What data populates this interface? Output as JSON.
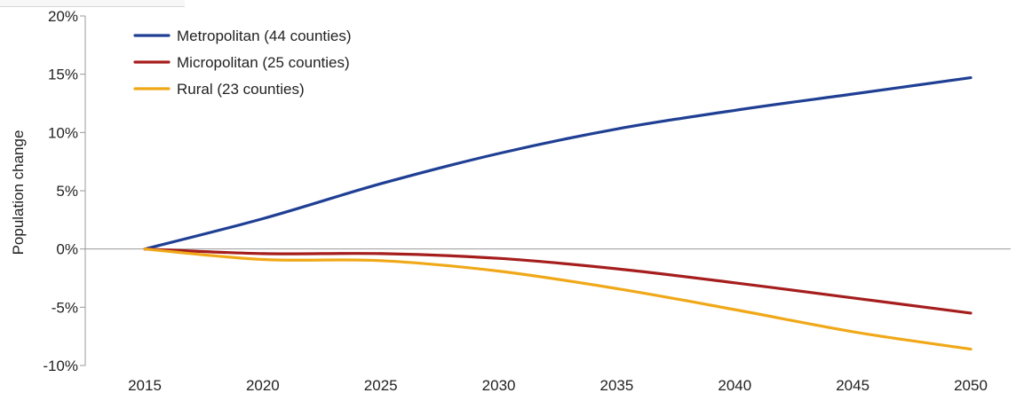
{
  "chart_data": {
    "type": "line",
    "title": "",
    "xlabel": "",
    "ylabel": "Population change",
    "x": [
      2015,
      2020,
      2025,
      2030,
      2035,
      2040,
      2045,
      2050
    ],
    "xticks": [
      "2015",
      "2020",
      "2025",
      "2030",
      "2035",
      "2040",
      "2045",
      "2050"
    ],
    "ylim": [
      -10,
      20
    ],
    "yticks": [
      -10,
      -5,
      0,
      5,
      10,
      15,
      20
    ],
    "ytick_labels": [
      "-10%",
      "-5%",
      "0%",
      "5%",
      "10%",
      "15%",
      "20%"
    ],
    "grid": false,
    "legend_position": "top-left",
    "series": [
      {
        "name": "Metropolitan (44 counties)",
        "color": "#1f3f94",
        "values": [
          0,
          2.6,
          5.6,
          8.2,
          10.3,
          11.9,
          13.3,
          14.7
        ]
      },
      {
        "name": "Micropolitan (25 counties)",
        "color": "#a61d1d",
        "values": [
          0,
          -0.4,
          -0.4,
          -0.8,
          -1.7,
          -2.9,
          -4.2,
          -5.5
        ]
      },
      {
        "name": "Rural (23 counties)",
        "color": "#f0a818",
        "values": [
          0,
          -0.9,
          -1.0,
          -1.9,
          -3.4,
          -5.2,
          -7.1,
          -8.6
        ]
      }
    ]
  }
}
